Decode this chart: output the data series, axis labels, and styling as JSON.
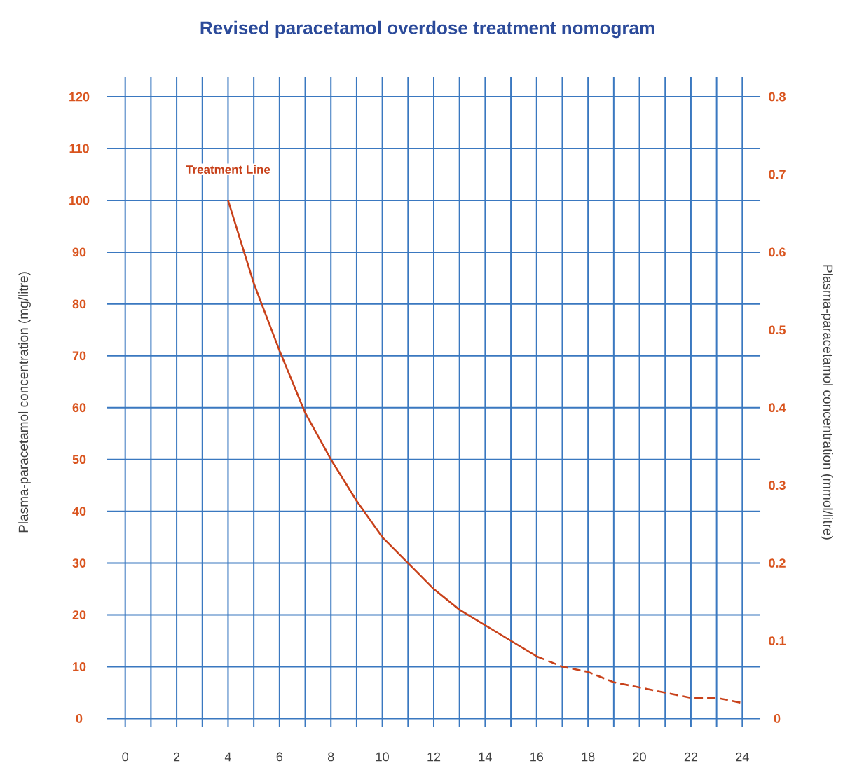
{
  "chart_data": {
    "type": "line",
    "title": "Revised paracetamol overdose treatment nomogram",
    "ylabel": "Plasma-paracetamol concentration (mg/litre)",
    "y2label": "Plasma-paracetamol concentration (mmol/litre)",
    "annotations": [
      "Treatment Line"
    ],
    "series": [
      {
        "color": "#c8411a",
        "line_style": "solid",
        "x": [
          4,
          5,
          6,
          7,
          8,
          9,
          10,
          11,
          12,
          13,
          14,
          15,
          16
        ],
        "values": [
          100,
          84,
          71,
          59,
          50,
          42,
          35,
          30,
          25,
          21,
          18,
          15,
          12
        ]
      },
      {
        "color": "#c8411a",
        "line_style": "dashed",
        "x": [
          16,
          17,
          18,
          19,
          20,
          21,
          22,
          23,
          24
        ],
        "values": [
          12,
          10,
          9,
          7,
          6,
          5,
          4,
          4,
          3
        ]
      }
    ],
    "xlim": [
      -0.7,
      24.7
    ],
    "ylim": [
      -1.7,
      123.8
    ],
    "y2lim": [
      -0.0113,
      0.8253
    ],
    "xticks": [
      0,
      {
        "value": 1,
        "label": null
      },
      2,
      {
        "value": 3,
        "label": null
      },
      4,
      {
        "value": 5,
        "label": null
      },
      6,
      {
        "value": 7,
        "label": null
      },
      8,
      {
        "value": 9,
        "label": null
      },
      10,
      {
        "value": 11,
        "label": null
      },
      12,
      {
        "value": 13,
        "label": null
      },
      14,
      {
        "value": 15,
        "label": null
      },
      16,
      {
        "value": 17,
        "label": null
      },
      18,
      {
        "value": 19,
        "label": null
      },
      20,
      {
        "value": 21,
        "label": null
      },
      22,
      {
        "value": 23,
        "label": null
      },
      24
    ],
    "yticks": [
      0,
      10,
      20,
      30,
      40,
      50,
      60,
      70,
      80,
      90,
      100,
      110,
      120
    ],
    "y2ticks": [
      0,
      0.1,
      0.2,
      0.3,
      0.4,
      0.5,
      0.6,
      0.7,
      0.8
    ],
    "grid": true
  }
}
